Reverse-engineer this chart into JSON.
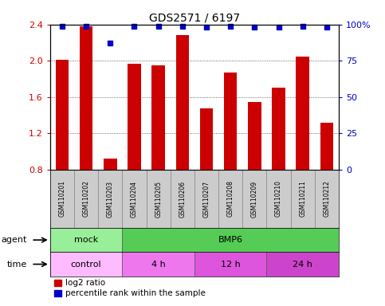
{
  "title": "GDS2571 / 6197",
  "samples": [
    "GSM110201",
    "GSM110202",
    "GSM110203",
    "GSM110204",
    "GSM110205",
    "GSM110206",
    "GSM110207",
    "GSM110208",
    "GSM110209",
    "GSM110210",
    "GSM110211",
    "GSM110212"
  ],
  "log2_ratio": [
    2.01,
    2.38,
    0.92,
    1.97,
    1.95,
    2.28,
    1.48,
    1.87,
    1.55,
    1.7,
    2.05,
    1.32
  ],
  "percentile": [
    99,
    99,
    87,
    99,
    99,
    99,
    98,
    99,
    98,
    98,
    99,
    98
  ],
  "bar_color": "#cc0000",
  "dot_color": "#0000cc",
  "ylim_left": [
    0.8,
    2.4
  ],
  "ylim_right": [
    0,
    100
  ],
  "yticks_left": [
    0.8,
    1.2,
    1.6,
    2.0,
    2.4
  ],
  "yticks_right": [
    0,
    25,
    50,
    75,
    100
  ],
  "agent_groups": [
    {
      "label": "mock",
      "start": 0,
      "end": 3,
      "color": "#99ee99"
    },
    {
      "label": "BMP6",
      "start": 3,
      "end": 12,
      "color": "#55cc55"
    }
  ],
  "time_groups": [
    {
      "label": "control",
      "start": 0,
      "end": 3,
      "color": "#ffbbff"
    },
    {
      "label": "4 h",
      "start": 3,
      "end": 6,
      "color": "#ee77ee"
    },
    {
      "label": "12 h",
      "start": 6,
      "end": 9,
      "color": "#dd55dd"
    },
    {
      "label": "24 h",
      "start": 9,
      "end": 12,
      "color": "#cc44cc"
    }
  ],
  "legend_red_label": "log2 ratio",
  "legend_blue_label": "percentile rank within the sample",
  "bar_color_legend": "#cc0000",
  "dot_color_legend": "#0000cc",
  "xlabel_color_left": "#cc0000",
  "xlabel_color_right": "#0000cc",
  "background_color": "#ffffff",
  "tick_area_color": "#cccccc",
  "agent_label": "agent",
  "time_label": "time"
}
